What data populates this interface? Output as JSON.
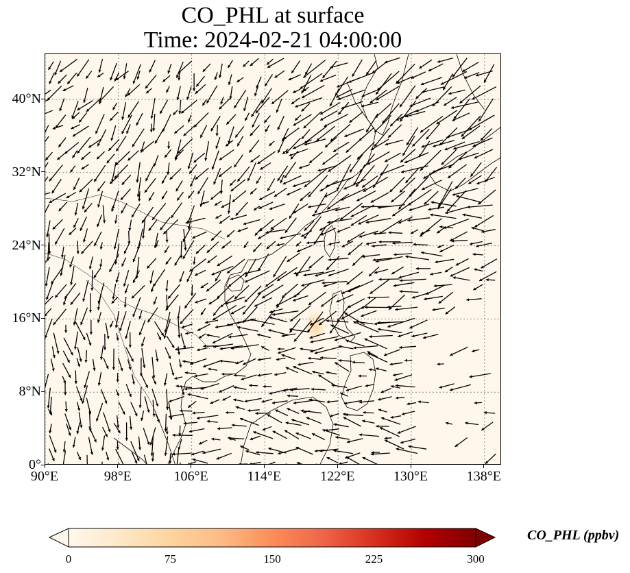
{
  "title": {
    "line1": "CO_PHL at surface",
    "line2": "Time: 2024-02-21 04:00:00"
  },
  "map": {
    "projection": "PlateCarree",
    "lon_range": [
      90,
      140
    ],
    "lat_range": [
      0,
      45
    ],
    "background_color": "#fff7ec",
    "gridlines": "dotted grey",
    "lat_ticks": [
      "0°",
      "8°N",
      "16°N",
      "24°N",
      "32°N",
      "40°N"
    ],
    "lat_values": [
      0,
      8,
      16,
      24,
      32,
      40
    ],
    "lon_ticks": [
      "90°E",
      "98°E",
      "106°E",
      "114°E",
      "122°E",
      "130°E",
      "138°E"
    ],
    "lon_values": [
      90,
      98,
      106,
      114,
      122,
      130,
      138
    ],
    "field": "wind vectors (black arrows)",
    "co_hotspot": {
      "lon": 119.5,
      "lat": 15.2,
      "approx_ppbv": 40
    }
  },
  "colorbar": {
    "label": "CO_PHL (ppbv)",
    "colormap": "OrRd",
    "min": 0,
    "max": 300,
    "extend": "both",
    "ticks": [
      "0",
      "75",
      "150",
      "225",
      "300"
    ],
    "tick_values": [
      0,
      75,
      150,
      225,
      300
    ],
    "colors": [
      "#fff7ec",
      "#fee8c8",
      "#fdd49e",
      "#fdbb84",
      "#fc8d59",
      "#ef6548",
      "#d7301f",
      "#b30000",
      "#7f0000"
    ]
  }
}
